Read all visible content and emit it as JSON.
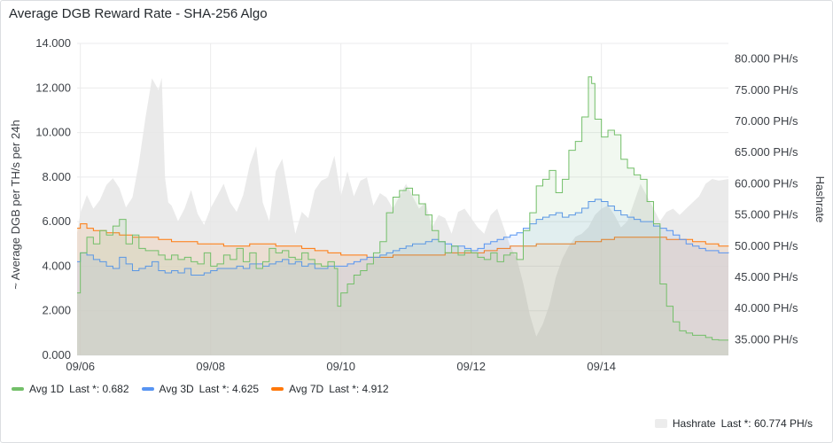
{
  "panel": {
    "title": "Average DGB Reward Rate - SHA-256 Algo"
  },
  "colors": {
    "avg1d": "#73bf69",
    "avg3d": "#5794f2",
    "avg7d": "#ff780a",
    "hashrate": "#d8d9da"
  },
  "legend": {
    "avg1d": {
      "name": "Avg 1D",
      "last": "Last *: 0.682"
    },
    "avg3d": {
      "name": "Avg 3D",
      "last": "Last *: 4.625"
    },
    "avg7d": {
      "name": "Avg 7D",
      "last": "Last *: 4.912"
    },
    "hashrate": {
      "name": "Hashrate",
      "last": "Last *: 60.774 PH/s"
    }
  },
  "chart_data": {
    "type": "area",
    "title": "Average DGB Reward Rate - SHA-256 Algo",
    "ylabel": "~ Average DGB per TH/s per 24h",
    "y2label": "Hashrate",
    "x_ticks": [
      "09/06",
      "09/08",
      "09/10",
      "09/12",
      "09/14"
    ],
    "y_ticks": [
      "0.000",
      "2.000",
      "4.000",
      "6.000",
      "8.000",
      "10.000",
      "12.000",
      "14.000"
    ],
    "y2_ticks": [
      "35.000 PH/s",
      "40.000 PH/s",
      "45.000 PH/s",
      "50.000 PH/s",
      "55.000 PH/s",
      "60.000 PH/s",
      "65.000 PH/s",
      "70.000 PH/s",
      "75.000 PH/s",
      "80.000 PH/s"
    ],
    "xlim_days": [
      5.95,
      15.95
    ],
    "ylim": [
      0,
      14
    ],
    "y2lim": [
      32.5,
      82.5
    ],
    "grid": true,
    "legend_position": "bottom-left",
    "series": [
      {
        "key": "avg1d",
        "name": "Avg 1D",
        "axis": "left",
        "x": [
          5.95,
          6.0,
          6.1,
          6.2,
          6.3,
          6.4,
          6.5,
          6.6,
          6.7,
          6.8,
          6.9,
          7.0,
          7.1,
          7.2,
          7.3,
          7.4,
          7.5,
          7.6,
          7.7,
          7.8,
          7.9,
          8.0,
          8.1,
          8.2,
          8.3,
          8.4,
          8.5,
          8.6,
          8.7,
          8.8,
          8.9,
          9.0,
          9.1,
          9.2,
          9.3,
          9.4,
          9.5,
          9.6,
          9.7,
          9.8,
          9.9,
          9.95,
          10.0,
          10.1,
          10.2,
          10.3,
          10.4,
          10.5,
          10.6,
          10.7,
          10.8,
          10.9,
          11.0,
          11.1,
          11.2,
          11.3,
          11.4,
          11.5,
          11.6,
          11.7,
          11.8,
          11.9,
          12.0,
          12.1,
          12.2,
          12.3,
          12.4,
          12.5,
          12.6,
          12.7,
          12.8,
          12.9,
          13.0,
          13.1,
          13.2,
          13.3,
          13.4,
          13.5,
          13.6,
          13.7,
          13.8,
          13.85,
          13.9,
          14.0,
          14.1,
          14.2,
          14.3,
          14.4,
          14.5,
          14.6,
          14.7,
          14.8,
          14.9,
          15.0,
          15.1,
          15.2,
          15.3,
          15.4,
          15.5,
          15.6,
          15.7,
          15.8,
          15.95
        ],
        "values": [
          2.8,
          4.6,
          5.3,
          5.0,
          5.6,
          5.4,
          5.8,
          6.1,
          5.0,
          5.4,
          4.8,
          4.7,
          4.7,
          4.5,
          4.3,
          4.5,
          4.3,
          4.4,
          4.2,
          4.1,
          4.6,
          4.0,
          4.1,
          4.5,
          4.3,
          4.8,
          4.2,
          4.6,
          3.9,
          4.2,
          4.8,
          4.6,
          4.7,
          4.4,
          4.3,
          4.6,
          4.3,
          4.1,
          4.0,
          4.2,
          3.9,
          2.2,
          2.8,
          3.2,
          3.6,
          3.8,
          4.1,
          4.6,
          5.1,
          6.4,
          7.1,
          7.4,
          7.5,
          7.2,
          6.8,
          6.3,
          5.6,
          5.1,
          4.6,
          4.9,
          4.5,
          4.7,
          4.6,
          4.4,
          4.3,
          4.6,
          4.2,
          4.5,
          4.6,
          4.3,
          5.6,
          6.4,
          7.6,
          7.9,
          8.3,
          7.3,
          7.9,
          9.2,
          9.6,
          10.7,
          12.5,
          12.2,
          10.6,
          9.8,
          10.1,
          9.9,
          8.8,
          8.4,
          8.1,
          7.9,
          6.9,
          5.9,
          3.2,
          2.2,
          1.5,
          1.1,
          1.0,
          0.9,
          0.9,
          0.8,
          0.7,
          0.682,
          0.682
        ]
      },
      {
        "key": "avg3d",
        "name": "Avg 3D",
        "axis": "left",
        "x": [
          5.95,
          6.0,
          6.1,
          6.2,
          6.3,
          6.4,
          6.5,
          6.6,
          6.7,
          6.8,
          6.9,
          7.0,
          7.1,
          7.2,
          7.3,
          7.4,
          7.5,
          7.6,
          7.7,
          7.8,
          7.9,
          8.0,
          8.1,
          8.2,
          8.3,
          8.4,
          8.5,
          8.6,
          8.7,
          8.8,
          8.9,
          9.0,
          9.1,
          9.2,
          9.3,
          9.4,
          9.5,
          9.6,
          9.7,
          9.8,
          9.9,
          10.0,
          10.1,
          10.2,
          10.3,
          10.4,
          10.5,
          10.6,
          10.7,
          10.8,
          10.9,
          11.0,
          11.1,
          11.2,
          11.3,
          11.4,
          11.5,
          11.6,
          11.7,
          11.8,
          11.9,
          12.0,
          12.1,
          12.2,
          12.3,
          12.4,
          12.5,
          12.6,
          12.7,
          12.8,
          12.9,
          13.0,
          13.1,
          13.2,
          13.3,
          13.4,
          13.5,
          13.6,
          13.7,
          13.8,
          13.9,
          14.0,
          14.1,
          14.2,
          14.3,
          14.4,
          14.5,
          14.6,
          14.7,
          14.8,
          14.9,
          15.0,
          15.1,
          15.2,
          15.3,
          15.4,
          15.5,
          15.6,
          15.7,
          15.8,
          15.95
        ],
        "values": [
          4.2,
          4.6,
          4.5,
          4.3,
          4.2,
          4.0,
          3.9,
          4.4,
          4.1,
          3.8,
          3.9,
          4.0,
          4.2,
          3.8,
          3.7,
          3.8,
          3.7,
          3.9,
          3.6,
          3.6,
          3.7,
          3.8,
          3.9,
          3.9,
          3.9,
          4.0,
          3.9,
          4.1,
          4.1,
          4.0,
          4.1,
          4.2,
          4.3,
          4.1,
          4.2,
          4.0,
          4.1,
          3.9,
          3.9,
          4.0,
          4.0,
          4.0,
          4.1,
          4.2,
          4.3,
          4.4,
          4.4,
          4.5,
          4.6,
          4.7,
          4.8,
          4.9,
          5.0,
          5.0,
          5.1,
          5.2,
          5.1,
          5.0,
          4.9,
          4.9,
          4.8,
          4.7,
          4.8,
          5.0,
          5.1,
          5.2,
          5.3,
          5.4,
          5.5,
          5.7,
          5.9,
          6.1,
          6.2,
          6.3,
          6.4,
          6.2,
          6.3,
          6.4,
          6.6,
          6.9,
          7.0,
          6.9,
          6.7,
          6.5,
          6.3,
          6.2,
          6.1,
          6.0,
          6.0,
          5.8,
          5.7,
          5.6,
          5.4,
          5.2,
          5.0,
          4.9,
          4.8,
          4.7,
          4.7,
          4.6,
          4.625
        ]
      },
      {
        "key": "avg7d",
        "name": "Avg 7D",
        "axis": "left",
        "x": [
          5.95,
          6.0,
          6.1,
          6.2,
          6.4,
          6.6,
          6.8,
          7.0,
          7.2,
          7.4,
          7.6,
          7.8,
          8.0,
          8.2,
          8.4,
          8.6,
          8.8,
          9.0,
          9.2,
          9.4,
          9.6,
          9.8,
          10.0,
          10.2,
          10.4,
          10.6,
          10.8,
          11.0,
          11.2,
          11.4,
          11.6,
          11.8,
          12.0,
          12.2,
          12.4,
          12.6,
          12.8,
          13.0,
          13.2,
          13.4,
          13.6,
          13.8,
          14.0,
          14.2,
          14.4,
          14.6,
          14.8,
          15.0,
          15.2,
          15.4,
          15.6,
          15.8,
          15.95
        ],
        "values": [
          5.7,
          5.9,
          5.7,
          5.6,
          5.5,
          5.4,
          5.3,
          5.3,
          5.2,
          5.1,
          5.1,
          5.0,
          5.0,
          4.9,
          4.9,
          5.0,
          5.0,
          4.9,
          4.9,
          4.8,
          4.7,
          4.6,
          4.5,
          4.5,
          4.4,
          4.4,
          4.5,
          4.5,
          4.5,
          4.5,
          4.6,
          4.6,
          4.6,
          4.7,
          4.8,
          4.9,
          4.9,
          5.0,
          5.0,
          5.0,
          5.1,
          5.1,
          5.2,
          5.3,
          5.3,
          5.3,
          5.3,
          5.2,
          5.2,
          5.1,
          5.0,
          4.9,
          4.912
        ]
      },
      {
        "key": "hashrate",
        "name": "Hashrate",
        "axis": "right",
        "x": [
          5.95,
          6.0,
          6.1,
          6.2,
          6.3,
          6.4,
          6.5,
          6.6,
          6.7,
          6.8,
          6.9,
          7.0,
          7.1,
          7.2,
          7.25,
          7.3,
          7.35,
          7.4,
          7.5,
          7.6,
          7.7,
          7.8,
          7.9,
          8.0,
          8.1,
          8.2,
          8.3,
          8.4,
          8.5,
          8.6,
          8.7,
          8.8,
          8.9,
          9.0,
          9.1,
          9.2,
          9.3,
          9.4,
          9.5,
          9.6,
          9.7,
          9.8,
          9.9,
          10.0,
          10.1,
          10.2,
          10.3,
          10.4,
          10.5,
          10.6,
          10.7,
          10.8,
          10.9,
          11.0,
          11.1,
          11.2,
          11.3,
          11.4,
          11.5,
          11.6,
          11.7,
          11.8,
          11.9,
          12.0,
          12.1,
          12.2,
          12.3,
          12.4,
          12.5,
          12.6,
          12.7,
          12.8,
          12.9,
          13.0,
          13.1,
          13.2,
          13.3,
          13.4,
          13.5,
          13.6,
          13.7,
          13.8,
          13.9,
          14.0,
          14.1,
          14.2,
          14.3,
          14.4,
          14.5,
          14.6,
          14.7,
          14.8,
          14.9,
          15.0,
          15.1,
          15.2,
          15.3,
          15.4,
          15.5,
          15.6,
          15.7,
          15.8,
          15.95
        ],
        "values": [
          52.1,
          55.3,
          58.2,
          56.0,
          57.4,
          59.8,
          60.9,
          59.3,
          56.2,
          57.8,
          63.4,
          70.6,
          76.9,
          75.0,
          77.0,
          61.0,
          57.0,
          56.5,
          54.0,
          56.0,
          59.0,
          55.2,
          53.4,
          56.1,
          58.0,
          60.0,
          57.0,
          55.5,
          58.2,
          63.0,
          66.0,
          57.0,
          54.0,
          62.0,
          64.0,
          58.0,
          52.0,
          55.5,
          54.5,
          59.0,
          60.5,
          61.0,
          64.5,
          58.0,
          62.0,
          58.0,
          60.5,
          61.0,
          56.5,
          58.5,
          57.8,
          56.0,
          58.0,
          60.0,
          58.0,
          56.0,
          57.0,
          53.0,
          55.0,
          54.5,
          52.0,
          55.5,
          56.0,
          54.5,
          53.0,
          52.0,
          55.0,
          56.0,
          53.0,
          50.0,
          48.0,
          44.0,
          39.0,
          35.5,
          37.5,
          40.5,
          45.0,
          48.0,
          50.0,
          51.5,
          52.0,
          53.0,
          55.0,
          56.0,
          56.5,
          55.0,
          53.0,
          54.0,
          57.0,
          60.0,
          58.0,
          56.0,
          54.0,
          55.5,
          56.0,
          55.0,
          56.0,
          57.0,
          58.0,
          60.0,
          60.774,
          60.5,
          60.774
        ]
      }
    ]
  }
}
